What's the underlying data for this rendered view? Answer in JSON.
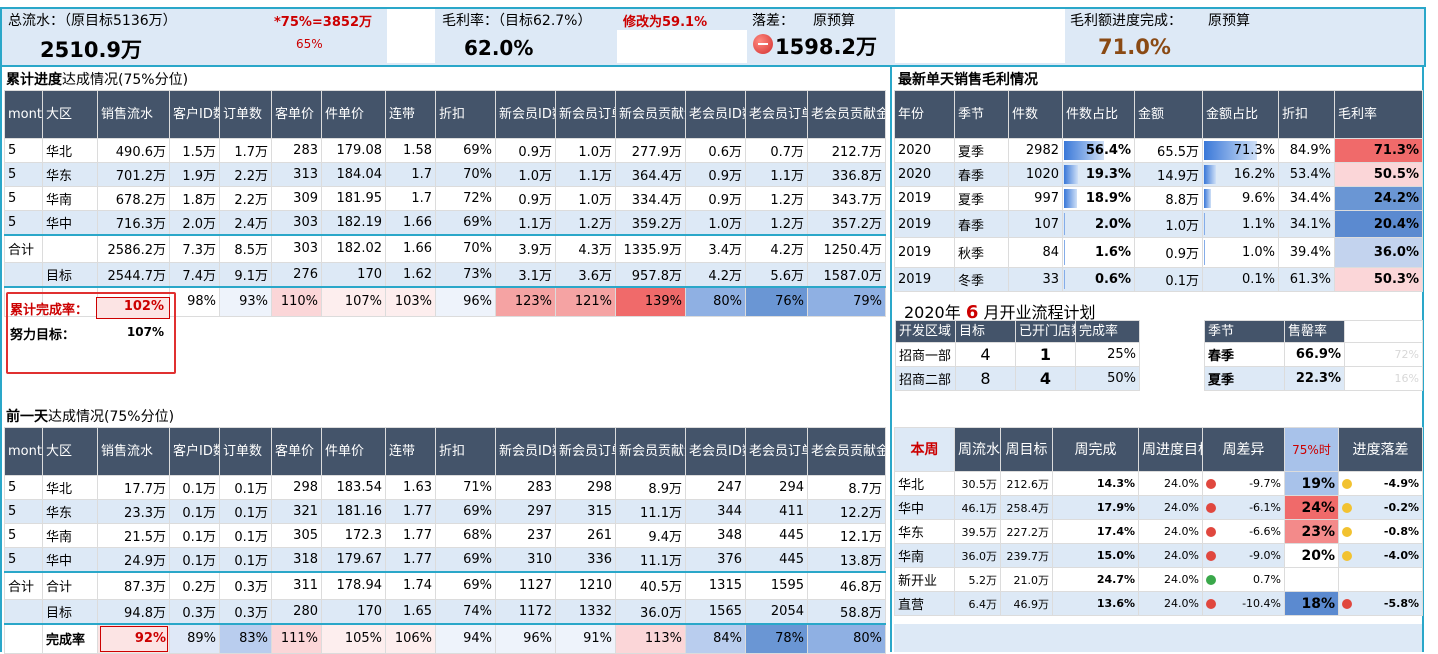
{
  "summary": {
    "total_label": "总流水：（原目标5136万）",
    "total_value": "2510.9万",
    "target75_label": "*75%=3852万",
    "target75_pct": "65%",
    "gm_label": "毛利率：（目标62.7%）",
    "gm_change": "修改为59.1%",
    "gm_value": "62.0%",
    "gap_label": "落差：",
    "gap_budget": "原预算",
    "gap_value": "1598.2万",
    "gmprog_label": "毛利额进度完成：",
    "gmprog_budget": "原预算",
    "gmprog_value": "71.0%"
  },
  "cum": {
    "title_bold": "累计进度",
    "title_rest": "达成情况(75%分位)",
    "headers": [
      "month",
      "大区",
      "销售流水",
      "客户ID数",
      "订单数",
      "客单价",
      "件单价",
      "连带",
      "折扣",
      "新会员ID数",
      "新会员订单数",
      "新会员贡献金额",
      "老会员ID数",
      "老会员订单数",
      "老会员贡献金额"
    ],
    "rows": [
      [
        "5",
        "华北",
        "490.6万",
        "1.5万",
        "1.7万",
        "283",
        "179.08",
        "1.58",
        "69%",
        "0.9万",
        "1.0万",
        "277.9万",
        "0.6万",
        "0.7万",
        "212.7万"
      ],
      [
        "5",
        "华东",
        "701.2万",
        "1.9万",
        "2.2万",
        "313",
        "184.04",
        "1.7",
        "70%",
        "1.0万",
        "1.1万",
        "364.4万",
        "0.9万",
        "1.1万",
        "336.8万"
      ],
      [
        "5",
        "华南",
        "678.2万",
        "1.8万",
        "2.2万",
        "309",
        "181.95",
        "1.7",
        "72%",
        "0.9万",
        "1.0万",
        "334.4万",
        "0.9万",
        "1.2万",
        "343.7万"
      ],
      [
        "5",
        "华中",
        "716.3万",
        "2.0万",
        "2.4万",
        "303",
        "182.19",
        "1.66",
        "69%",
        "1.1万",
        "1.2万",
        "359.2万",
        "1.0万",
        "1.2万",
        "357.2万"
      ]
    ],
    "total": [
      "合计",
      "",
      "2586.2万",
      "7.3万",
      "8.5万",
      "303",
      "182.02",
      "1.66",
      "70%",
      "3.9万",
      "4.3万",
      "1335.9万",
      "3.4万",
      "4.2万",
      "1250.4万"
    ],
    "target": [
      "",
      "目标",
      "2544.7万",
      "7.4万",
      "9.1万",
      "276",
      "170",
      "1.62",
      "73%",
      "3.1万",
      "3.6万",
      "957.8万",
      "4.2万",
      "5.6万",
      "1587.0万"
    ],
    "rate_label": "累计完成率：",
    "rate_value": "102%",
    "rates": [
      "98%",
      "93%",
      "110%",
      "107%",
      "103%",
      "96%",
      "123%",
      "121%",
      "139%",
      "80%",
      "76%",
      "79%"
    ],
    "effort_label": "努力目标：",
    "effort_value": "107%"
  },
  "prev": {
    "title_bold": "前一天",
    "title_rest": "达成情况(75%分位)",
    "headers": [
      "month",
      "大区",
      "销售流水",
      "客户ID数",
      "订单数",
      "客单价",
      "件单价",
      "连带",
      "折扣",
      "新会员ID数",
      "新会员订单数",
      "新会员贡献金额",
      "老会员ID数",
      "老会员订单数",
      "老会员贡献金额"
    ],
    "rows": [
      [
        "5",
        "华北",
        "17.7万",
        "0.1万",
        "0.1万",
        "298",
        "183.54",
        "1.63",
        "71%",
        "283",
        "298",
        "8.9万",
        "247",
        "294",
        "8.7万"
      ],
      [
        "5",
        "华东",
        "23.3万",
        "0.1万",
        "0.1万",
        "321",
        "181.16",
        "1.77",
        "69%",
        "297",
        "315",
        "11.1万",
        "344",
        "411",
        "12.2万"
      ],
      [
        "5",
        "华南",
        "21.5万",
        "0.1万",
        "0.1万",
        "305",
        "172.3",
        "1.77",
        "68%",
        "237",
        "261",
        "9.4万",
        "348",
        "445",
        "12.1万"
      ],
      [
        "5",
        "华中",
        "24.9万",
        "0.1万",
        "0.1万",
        "318",
        "179.67",
        "1.77",
        "69%",
        "310",
        "336",
        "11.1万",
        "376",
        "445",
        "13.8万"
      ]
    ],
    "total": [
      "合计",
      "合计",
      "87.3万",
      "0.2万",
      "0.3万",
      "311",
      "178.94",
      "1.74",
      "69%",
      "1127",
      "1210",
      "40.5万",
      "1315",
      "1595",
      "46.8万"
    ],
    "target": [
      "",
      "目标",
      "94.8万",
      "0.3万",
      "0.3万",
      "280",
      "170",
      "1.65",
      "74%",
      "1172",
      "1332",
      "36.0万",
      "1565",
      "2054",
      "58.8万"
    ],
    "rate_label": "完成率",
    "rate_value": "92%",
    "rates": [
      "89%",
      "83%",
      "111%",
      "105%",
      "106%",
      "94%",
      "96%",
      "91%",
      "113%",
      "84%",
      "78%",
      "80%"
    ]
  },
  "daily": {
    "title": "最新单天销售毛利情况",
    "headers": [
      "年份",
      "季节",
      "件数",
      "件数占比",
      "金额",
      "金额占比",
      "折扣",
      "毛利率"
    ],
    "rows": [
      {
        "year": "2020",
        "season": "夏季",
        "qty": "2982",
        "qty_pct": "56.4%",
        "qty_frac": 0.564,
        "amt": "65.5万",
        "amt_pct": "71.3%",
        "amt_frac": 0.713,
        "disc": "84.9%",
        "gm": "71.3%",
        "gm_color": "#f06a6a"
      },
      {
        "year": "2020",
        "season": "春季",
        "qty": "1020",
        "qty_pct": "19.3%",
        "qty_frac": 0.193,
        "amt": "14.9万",
        "amt_pct": "16.2%",
        "amt_frac": 0.162,
        "disc": "53.4%",
        "gm": "50.5%",
        "gm_color": "#fbd6d8"
      },
      {
        "year": "2019",
        "season": "夏季",
        "qty": "997",
        "qty_pct": "18.9%",
        "qty_frac": 0.189,
        "amt": "8.8万",
        "amt_pct": "9.6%",
        "amt_frac": 0.096,
        "disc": "34.4%",
        "gm": "24.2%",
        "gm_color": "#6a96d4"
      },
      {
        "year": "2019",
        "season": "春季",
        "qty": "107",
        "qty_pct": "2.0%",
        "qty_frac": 0.02,
        "amt": "1.0万",
        "amt_pct": "1.1%",
        "amt_frac": 0.011,
        "disc": "34.1%",
        "gm": "20.4%",
        "gm_color": "#5b8ad0"
      },
      {
        "year": "2019",
        "season": "秋季",
        "qty": "84",
        "qty_pct": "1.6%",
        "qty_frac": 0.016,
        "amt": "0.9万",
        "amt_pct": "1.0%",
        "amt_frac": 0.01,
        "disc": "39.4%",
        "gm": "36.0%",
        "gm_color": "#c3d3ee"
      },
      {
        "year": "2019",
        "season": "冬季",
        "qty": "33",
        "qty_pct": "0.6%",
        "qty_frac": 0.006,
        "amt": "0.1万",
        "amt_pct": "0.1%",
        "amt_frac": 0.001,
        "disc": "61.3%",
        "gm": "50.3%",
        "gm_color": "#fbd6d8"
      }
    ]
  },
  "plan": {
    "title_a": "2020年",
    "title_month": "6",
    "title_b": "月开业流程计划",
    "headers": [
      "开发区域",
      "目标",
      "已开门店数",
      "完成率"
    ],
    "rows": [
      [
        "招商一部",
        "4",
        "1",
        "25%"
      ],
      [
        "招商二部",
        "8",
        "4",
        "50%"
      ]
    ],
    "season_headers": [
      "季节",
      "售罄率"
    ],
    "season_rows": [
      [
        "春季",
        "66.9%",
        "72%"
      ],
      [
        "夏季",
        "22.3%",
        "16%"
      ]
    ]
  },
  "weekly": {
    "headers": [
      "本周",
      "周流水",
      "周目标",
      "周完成",
      "周进度目标",
      "周差异",
      "75%时",
      "进度落差"
    ],
    "rows": [
      {
        "name": "华北",
        "flow": "30.5万",
        "target": "212.6万",
        "done": "14.3%",
        "prog": "24.0%",
        "dot1": "#e0473e",
        "diff": "-9.7%",
        "t75": "19%",
        "t75_bg": "#a8c2ea",
        "dot2": "#f2c230",
        "gap": "-4.9%"
      },
      {
        "name": "华中",
        "flow": "46.1万",
        "target": "258.4万",
        "done": "17.9%",
        "prog": "24.0%",
        "dot1": "#e0473e",
        "diff": "-6.1%",
        "t75": "24%",
        "t75_bg": "#f06a6a",
        "dot2": "#f2c230",
        "gap": "-0.2%"
      },
      {
        "name": "华东",
        "flow": "39.5万",
        "target": "227.2万",
        "done": "17.4%",
        "prog": "24.0%",
        "dot1": "#e0473e",
        "diff": "-6.6%",
        "t75": "23%",
        "t75_bg": "#f38a8a",
        "dot2": "#f2c230",
        "gap": "-0.8%"
      },
      {
        "name": "华南",
        "flow": "36.0万",
        "target": "239.7万",
        "done": "15.0%",
        "prog": "24.0%",
        "dot1": "#e0473e",
        "diff": "-9.0%",
        "t75": "20%",
        "t75_bg": "#ffffff",
        "dot2": "#f2c230",
        "gap": "-4.0%"
      },
      {
        "name": "新开业",
        "flow": "5.2万",
        "target": "21.0万",
        "done": "24.7%",
        "prog": "24.0%",
        "dot1": "#3aa84a",
        "diff": "0.7%",
        "t75": "",
        "t75_bg": "#ffffff",
        "dot2": "",
        "gap": ""
      },
      {
        "name": "直营",
        "flow": "6.4万",
        "target": "46.9万",
        "done": "13.6%",
        "prog": "24.0%",
        "dot1": "#e0473e",
        "diff": "-10.4%",
        "t75": "18%",
        "t75_bg": "#5b8ad0",
        "dot2": "#e0473e",
        "gap": "-5.8%"
      }
    ]
  },
  "colors": {
    "header_bg": "#44546a",
    "light_row": "#dde9f6",
    "red_text": "#cc0000",
    "brown_text": "#8a4a14"
  }
}
